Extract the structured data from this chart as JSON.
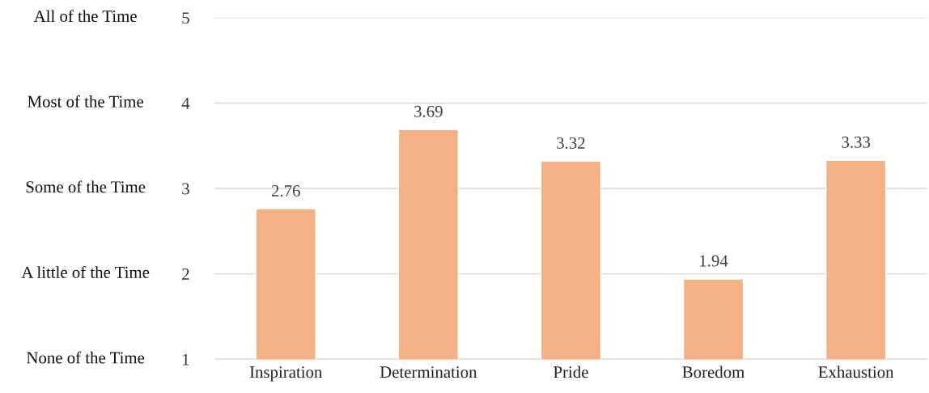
{
  "chart_data": {
    "type": "bar",
    "categories": [
      "Inspiration",
      "Determination",
      "Pride",
      "Boredom",
      "Exhaustion"
    ],
    "values": [
      2.76,
      3.69,
      3.32,
      1.94,
      3.33
    ],
    "color": "#f4b183",
    "data_labels": true,
    "ylim": [
      1,
      5
    ],
    "yticks": [
      1,
      2,
      3,
      4,
      5
    ],
    "annotations": [
      "All of the Time",
      "Most of the Time",
      "Some of the Time",
      "A little of the Time",
      "None of the Time"
    ],
    "grid": "y"
  }
}
